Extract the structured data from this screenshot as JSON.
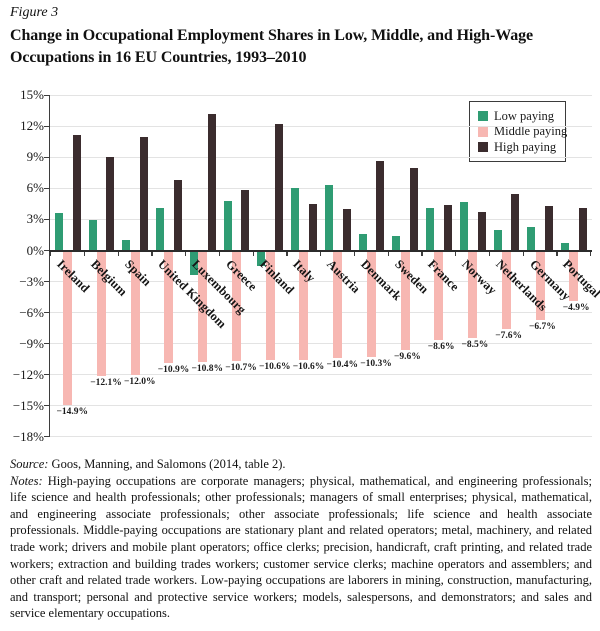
{
  "figure": {
    "label": "Figure 3"
  },
  "title": {
    "line1": "Change in Occupational Employment Shares in Low, Middle, and High-Wage",
    "line2": "Occupations in 16 EU Countries, 1993–2010"
  },
  "chart_data": {
    "type": "bar",
    "title": "Change in Occupational Employment Shares in Low, Middle, and High-Wage Occupations in 16 EU Countries, 1993–2010",
    "categories": [
      "Ireland",
      "Belgium",
      "Spain",
      "United Kingdom",
      "Luxembourg",
      "Greece",
      "Finland",
      "Italy",
      "Austria",
      "Denmark",
      "Sweden",
      "France",
      "Norway",
      "Netherlands",
      "Germany",
      "Portugal"
    ],
    "series": [
      {
        "name": "Low paying",
        "color": "#2F9C73",
        "values": [
          3.6,
          2.9,
          1.0,
          4.1,
          -2.4,
          4.8,
          -1.5,
          6.0,
          6.3,
          1.6,
          1.4,
          4.1,
          4.7,
          2.0,
          2.3,
          0.7
        ]
      },
      {
        "name": "Middle paying",
        "color": "#F7B7B2",
        "values": [
          -14.9,
          -12.1,
          -12.0,
          -10.9,
          -10.8,
          -10.7,
          -10.6,
          -10.6,
          -10.4,
          -10.3,
          -9.6,
          -8.6,
          -8.5,
          -7.6,
          -6.7,
          -4.9
        ],
        "data_labels": [
          "−14.9%",
          "−12.1%",
          "−12.0%",
          "−10.9%",
          "−10.8%",
          "−10.7%",
          "−10.6%",
          "−10.6%",
          "−10.4%",
          "−10.3%",
          "−9.6%",
          "−8.6%",
          "−8.5%",
          "−7.6%",
          "−6.7%",
          "−4.9%"
        ]
      },
      {
        "name": "High paying",
        "color": "#3B2C2E",
        "values": [
          11.2,
          9.0,
          11.0,
          6.8,
          13.2,
          5.8,
          12.2,
          4.5,
          4.0,
          8.6,
          8.0,
          4.4,
          3.7,
          5.5,
          4.3,
          4.1
        ]
      }
    ],
    "xlabel": "",
    "ylabel": "",
    "ylim": [
      -18,
      15
    ],
    "grid": true,
    "legend_position": "top-right",
    "y_ticks": [
      {
        "value": 15,
        "label": "15%"
      },
      {
        "value": 12,
        "label": "12%"
      },
      {
        "value": 9,
        "label": "9%"
      },
      {
        "value": 6,
        "label": "6%"
      },
      {
        "value": 3,
        "label": "3%"
      },
      {
        "value": 0,
        "label": "0%"
      },
      {
        "value": -3,
        "label": "−3%"
      },
      {
        "value": -6,
        "label": "−6%"
      },
      {
        "value": -9,
        "label": "−9%"
      },
      {
        "value": -12,
        "label": "−12%"
      },
      {
        "value": -15,
        "label": "−15%"
      },
      {
        "value": -18,
        "label": "−18%"
      }
    ]
  },
  "footer": {
    "source_prefix": "Source:",
    "source_text": "Goos, Manning, and Salomons (2014, table 2).",
    "notes_prefix": "Notes:",
    "notes_text": "High-paying occupations are corporate managers; physical, mathematical, and engineering professionals; life science and health professionals; other professionals; managers of small enterprises; physical, mathematical, and engineering associate professionals; other associate professionals; life science and health associate professionals. Middle-paying occupations are stationary plant and related operators; metal, machinery, and related trade work; drivers and mobile plant operators; office clerks; precision, handicraft, craft printing, and related trade workers; extraction and building trades workers; customer service clerks; machine operators and assemblers; and other craft and related trade workers. Low-paying occupations are laborers in mining, construction, manufacturing, and transport; personal and protective service workers; models, salespersons, and demonstrators; and sales and service elementary occupations."
  }
}
